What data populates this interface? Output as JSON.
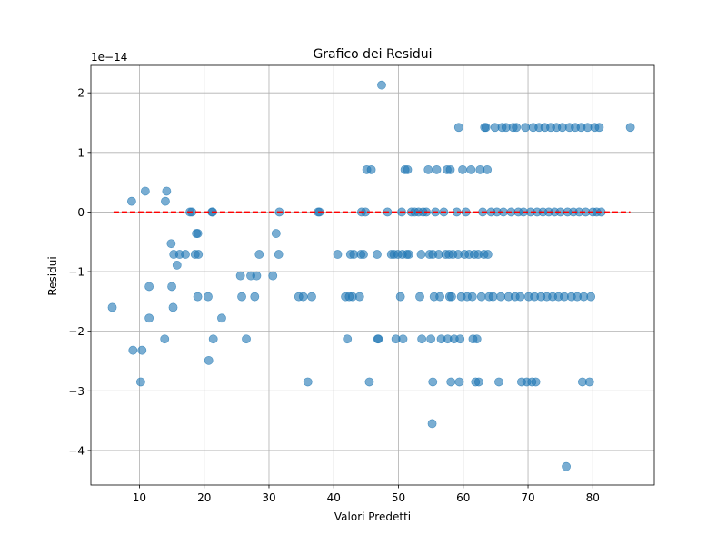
{
  "chart_data": {
    "type": "scatter",
    "title": "Grafico dei Residui",
    "xlabel": "Valori Predetti",
    "ylabel": "Residui",
    "offset_label": "1e−14",
    "xlim": [
      2.5,
      89.5
    ],
    "ylim": [
      -4.58,
      2.46
    ],
    "xticks": [
      10,
      20,
      30,
      40,
      50,
      60,
      70,
      80
    ],
    "yticks": [
      -4,
      -3,
      -2,
      -1,
      0,
      1,
      2
    ],
    "ytick_labels": [
      "−4",
      "−3",
      "−2",
      "−1",
      "0",
      "1",
      "2"
    ],
    "grid": true,
    "marker_color": "#1f77b4",
    "reference_line": {
      "y": 0,
      "x": [
        6,
        85.8
      ],
      "color": "#ff0000",
      "style": "dashed"
    },
    "points": [
      [
        5.8,
        -1.6
      ],
      [
        8.8,
        0.18
      ],
      [
        9.0,
        -2.32
      ],
      [
        10.2,
        -2.85
      ],
      [
        10.4,
        -2.32
      ],
      [
        10.9,
        0.35
      ],
      [
        11.5,
        -1.25
      ],
      [
        11.5,
        -1.78
      ],
      [
        13.9,
        -2.13
      ],
      [
        14.0,
        0.18
      ],
      [
        14.2,
        0.35
      ],
      [
        14.9,
        -0.53
      ],
      [
        15.0,
        -1.25
      ],
      [
        15.2,
        -1.6
      ],
      [
        15.3,
        -0.71
      ],
      [
        15.8,
        -0.89
      ],
      [
        16.2,
        -0.71
      ],
      [
        17.1,
        -0.71
      ],
      [
        17.8,
        0
      ],
      [
        18.1,
        0
      ],
      [
        18.6,
        -0.71
      ],
      [
        18.8,
        -0.36
      ],
      [
        19.0,
        -0.36
      ],
      [
        19.0,
        -1.42
      ],
      [
        19.1,
        -0.71
      ],
      [
        20.6,
        -1.42
      ],
      [
        20.7,
        -2.49
      ],
      [
        21.2,
        0
      ],
      [
        21.3,
        0
      ],
      [
        21.4,
        -2.13
      ],
      [
        22.7,
        -1.78
      ],
      [
        25.6,
        -1.07
      ],
      [
        25.8,
        -1.42
      ],
      [
        26.5,
        -2.13
      ],
      [
        27.2,
        -1.07
      ],
      [
        27.8,
        -1.42
      ],
      [
        28.1,
        -1.07
      ],
      [
        28.5,
        -0.71
      ],
      [
        30.6,
        -1.07
      ],
      [
        31.1,
        -0.36
      ],
      [
        31.5,
        -0.71
      ],
      [
        31.6,
        0
      ],
      [
        34.6,
        -1.42
      ],
      [
        35.3,
        -1.42
      ],
      [
        36.0,
        -2.85
      ],
      [
        36.6,
        -1.42
      ],
      [
        37.6,
        0
      ],
      [
        37.8,
        0
      ],
      [
        40.6,
        -0.71
      ],
      [
        41.8,
        -1.42
      ],
      [
        42.1,
        -2.13
      ],
      [
        42.4,
        -1.42
      ],
      [
        42.6,
        -0.71
      ],
      [
        42.9,
        -1.42
      ],
      [
        43.1,
        -0.71
      ],
      [
        44.0,
        -1.42
      ],
      [
        44.2,
        -0.71
      ],
      [
        44.3,
        0
      ],
      [
        44.6,
        -0.71
      ],
      [
        44.9,
        0
      ],
      [
        45.1,
        0.71
      ],
      [
        45.5,
        -2.85
      ],
      [
        45.8,
        0.71
      ],
      [
        46.7,
        -0.71
      ],
      [
        46.8,
        -2.13
      ],
      [
        46.9,
        -2.13
      ],
      [
        47.4,
        2.13
      ],
      [
        48.3,
        0
      ],
      [
        48.9,
        -0.71
      ],
      [
        49.3,
        -0.71
      ],
      [
        49.6,
        -2.13
      ],
      [
        49.9,
        -0.71
      ],
      [
        50.3,
        -1.42
      ],
      [
        50.5,
        0
      ],
      [
        50.6,
        -0.71
      ],
      [
        50.7,
        -2.13
      ],
      [
        51.0,
        0.71
      ],
      [
        51.3,
        -0.71
      ],
      [
        51.4,
        0.71
      ],
      [
        51.6,
        -0.71
      ],
      [
        52.0,
        0
      ],
      [
        52.5,
        0
      ],
      [
        53.1,
        0
      ],
      [
        53.3,
        -1.42
      ],
      [
        53.5,
        -0.71
      ],
      [
        53.6,
        -2.13
      ],
      [
        53.8,
        0
      ],
      [
        54.3,
        0
      ],
      [
        54.6,
        0.71
      ],
      [
        54.8,
        -0.71
      ],
      [
        55.0,
        -2.13
      ],
      [
        55.2,
        -3.55
      ],
      [
        55.3,
        -0.71
      ],
      [
        55.3,
        -2.85
      ],
      [
        55.5,
        -1.42
      ],
      [
        55.7,
        0
      ],
      [
        55.9,
        0.71
      ],
      [
        56.2,
        -0.71
      ],
      [
        56.4,
        -1.42
      ],
      [
        56.6,
        -2.13
      ],
      [
        57.0,
        0
      ],
      [
        57.3,
        -0.71
      ],
      [
        57.5,
        0.71
      ],
      [
        57.6,
        -2.13
      ],
      [
        57.8,
        -0.71
      ],
      [
        57.9,
        -1.42
      ],
      [
        58.0,
        0.71
      ],
      [
        58.1,
        -2.85
      ],
      [
        58.2,
        -1.42
      ],
      [
        58.4,
        -0.71
      ],
      [
        58.6,
        -2.13
      ],
      [
        59.0,
        0
      ],
      [
        59.2,
        -0.71
      ],
      [
        59.3,
        1.42
      ],
      [
        59.4,
        -2.85
      ],
      [
        59.5,
        -2.13
      ],
      [
        59.7,
        -1.42
      ],
      [
        59.9,
        0.71
      ],
      [
        60.2,
        -0.71
      ],
      [
        60.4,
        0
      ],
      [
        60.6,
        -1.42
      ],
      [
        60.9,
        -0.71
      ],
      [
        61.2,
        0.71
      ],
      [
        61.4,
        -1.42
      ],
      [
        61.5,
        -2.13
      ],
      [
        61.7,
        -0.71
      ],
      [
        61.9,
        -2.85
      ],
      [
        62.1,
        -2.13
      ],
      [
        62.3,
        -0.71
      ],
      [
        62.4,
        -2.85
      ],
      [
        62.6,
        0.71
      ],
      [
        62.8,
        -1.42
      ],
      [
        63.0,
        0
      ],
      [
        63.2,
        -0.71
      ],
      [
        63.3,
        1.42
      ],
      [
        63.5,
        1.42
      ],
      [
        63.7,
        0.71
      ],
      [
        63.8,
        -0.71
      ],
      [
        64.0,
        -1.42
      ],
      [
        64.3,
        0
      ],
      [
        64.6,
        -1.42
      ],
      [
        64.9,
        1.42
      ],
      [
        65.2,
        0
      ],
      [
        65.5,
        -2.85
      ],
      [
        65.8,
        -1.42
      ],
      [
        66.0,
        1.42
      ],
      [
        66.2,
        0
      ],
      [
        66.6,
        1.42
      ],
      [
        67.0,
        -1.42
      ],
      [
        67.4,
        0
      ],
      [
        67.7,
        1.42
      ],
      [
        68.0,
        -1.42
      ],
      [
        68.2,
        1.42
      ],
      [
        68.5,
        0
      ],
      [
        68.8,
        -1.42
      ],
      [
        69.0,
        -2.85
      ],
      [
        69.3,
        0
      ],
      [
        69.6,
        1.42
      ],
      [
        69.8,
        -2.85
      ],
      [
        70.1,
        -1.42
      ],
      [
        70.4,
        0
      ],
      [
        70.6,
        -2.85
      ],
      [
        70.8,
        1.42
      ],
      [
        71.0,
        -1.42
      ],
      [
        71.2,
        -2.85
      ],
      [
        71.4,
        0
      ],
      [
        71.7,
        1.42
      ],
      [
        72.0,
        -1.42
      ],
      [
        72.3,
        0
      ],
      [
        72.6,
        1.42
      ],
      [
        72.9,
        -1.42
      ],
      [
        73.2,
        0
      ],
      [
        73.5,
        1.42
      ],
      [
        73.8,
        -1.42
      ],
      [
        74.1,
        0
      ],
      [
        74.4,
        1.42
      ],
      [
        74.7,
        -1.42
      ],
      [
        75.0,
        0
      ],
      [
        75.3,
        1.42
      ],
      [
        75.6,
        -1.42
      ],
      [
        75.9,
        -4.27
      ],
      [
        76.1,
        0
      ],
      [
        76.4,
        1.42
      ],
      [
        76.7,
        -1.42
      ],
      [
        77.0,
        0
      ],
      [
        77.3,
        1.42
      ],
      [
        77.6,
        -1.42
      ],
      [
        77.9,
        0
      ],
      [
        78.2,
        1.42
      ],
      [
        78.4,
        -2.85
      ],
      [
        78.6,
        -1.42
      ],
      [
        78.9,
        0
      ],
      [
        79.2,
        1.42
      ],
      [
        79.5,
        -2.85
      ],
      [
        79.7,
        -1.42
      ],
      [
        80.0,
        0
      ],
      [
        80.3,
        1.42
      ],
      [
        80.6,
        0
      ],
      [
        81.0,
        1.42
      ],
      [
        81.3,
        0
      ],
      [
        85.8,
        1.42
      ]
    ]
  }
}
